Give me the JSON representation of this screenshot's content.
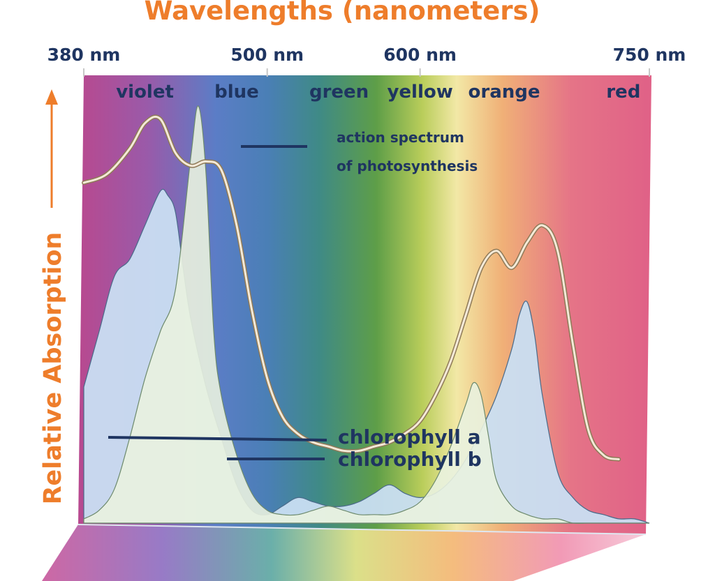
{
  "chart_data": {
    "type": "line",
    "title": "Wavelengths (nanometers)",
    "xlabel": "Wavelengths (nanometers)",
    "ylabel": "Relative Absorption",
    "xlim": [
      380,
      750
    ],
    "ylim": [
      0,
      1
    ],
    "x_ticks": [
      {
        "value": 380,
        "label": "380 nm"
      },
      {
        "value": 500,
        "label": "500 nm"
      },
      {
        "value": 600,
        "label": "600 nm"
      },
      {
        "value": 750,
        "label": "750 nm"
      }
    ],
    "color_bands": [
      {
        "label": "violet",
        "center": 420
      },
      {
        "label": "blue",
        "center": 480
      },
      {
        "label": "green",
        "center": 547
      },
      {
        "label": "yellow",
        "center": 600
      },
      {
        "label": "orange",
        "center": 655
      },
      {
        "label": "red",
        "center": 733
      }
    ],
    "grid": false,
    "series": [
      {
        "name": "action spectrum\nof photosynthesis",
        "label_lines": [
          "action spectrum",
          "of photosynthesis"
        ],
        "color": "#f4ead8",
        "x": [
          380,
          395,
          410,
          420,
          430,
          440,
          450,
          460,
          470,
          480,
          490,
          500,
          510,
          520,
          530,
          540,
          550,
          560,
          570,
          580,
          590,
          600,
          610,
          620,
          630,
          640,
          650,
          660,
          670,
          680,
          690,
          700,
          710,
          720,
          730
        ],
        "y": [
          0.8,
          0.82,
          0.88,
          0.94,
          0.95,
          0.87,
          0.84,
          0.85,
          0.83,
          0.7,
          0.5,
          0.34,
          0.25,
          0.21,
          0.19,
          0.18,
          0.17,
          0.17,
          0.18,
          0.19,
          0.21,
          0.24,
          0.3,
          0.38,
          0.49,
          0.6,
          0.64,
          0.6,
          0.66,
          0.7,
          0.64,
          0.42,
          0.22,
          0.16,
          0.15
        ]
      },
      {
        "name": "chlorophyll a",
        "color": "#c9def2",
        "x": [
          380,
          390,
          400,
          410,
          420,
          430,
          435,
          440,
          445,
          450,
          460,
          470,
          480,
          490,
          500,
          510,
          520,
          530,
          540,
          550,
          560,
          570,
          580,
          590,
          600,
          610,
          620,
          630,
          640,
          650,
          660,
          665,
          670,
          675,
          680,
          690,
          700,
          710,
          720,
          730,
          740,
          750
        ],
        "y": [
          0.32,
          0.45,
          0.58,
          0.62,
          0.7,
          0.78,
          0.77,
          0.73,
          0.6,
          0.48,
          0.32,
          0.2,
          0.09,
          0.03,
          0.02,
          0.04,
          0.06,
          0.05,
          0.04,
          0.04,
          0.05,
          0.07,
          0.09,
          0.07,
          0.06,
          0.07,
          0.1,
          0.15,
          0.22,
          0.3,
          0.41,
          0.49,
          0.52,
          0.44,
          0.3,
          0.12,
          0.06,
          0.03,
          0.02,
          0.01,
          0.01,
          0.0
        ]
      },
      {
        "name": "chlorophyll b",
        "color": "#e9f2df",
        "x": [
          380,
          390,
          400,
          410,
          420,
          430,
          440,
          450,
          455,
          460,
          465,
          470,
          480,
          490,
          500,
          510,
          520,
          530,
          540,
          550,
          560,
          570,
          580,
          590,
          600,
          610,
          620,
          630,
          635,
          640,
          645,
          650,
          660,
          670,
          680,
          690,
          700,
          710,
          720,
          730,
          740,
          750
        ],
        "y": [
          0.01,
          0.03,
          0.08,
          0.2,
          0.34,
          0.45,
          0.55,
          0.86,
          0.98,
          0.82,
          0.45,
          0.3,
          0.16,
          0.07,
          0.03,
          0.02,
          0.02,
          0.03,
          0.04,
          0.03,
          0.02,
          0.02,
          0.02,
          0.03,
          0.05,
          0.1,
          0.18,
          0.28,
          0.33,
          0.3,
          0.2,
          0.1,
          0.04,
          0.02,
          0.01,
          0.01,
          0.0,
          0.0,
          0.0,
          0.0,
          0.0,
          0.0
        ]
      }
    ]
  },
  "colors": {
    "accent": "#ee7d2b",
    "text_navy": "#1f3561",
    "spectrum": [
      "#b8498f",
      "#7a5fb5",
      "#4f7fc4",
      "#3f8a86",
      "#5e9e48",
      "#b9cd5a",
      "#f2e8a6",
      "#f0b077",
      "#e57487",
      "#e06187"
    ]
  }
}
